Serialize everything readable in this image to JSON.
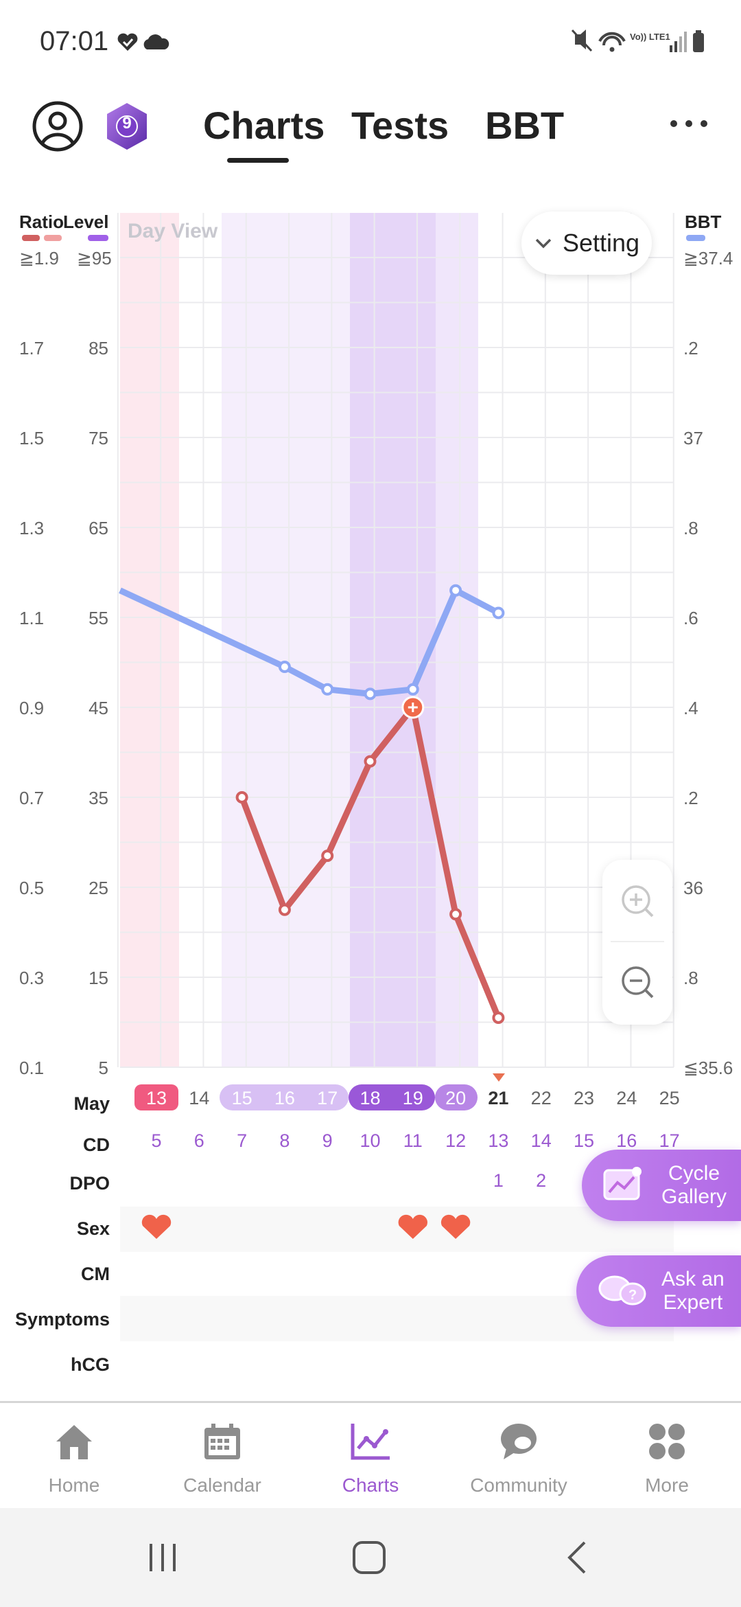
{
  "status_bar": {
    "time": "07:01",
    "network_label": "Vo)) LTE1"
  },
  "top_nav": {
    "badge_level": "9",
    "tabs": [
      {
        "label": "Charts",
        "active": true
      },
      {
        "label": "Tests",
        "active": false
      },
      {
        "label": "BBT",
        "active": false
      }
    ]
  },
  "chart": {
    "day_view_label": "Day View",
    "setting_label": "Setting",
    "axis_headers": {
      "ratio": "Ratio",
      "level": "Level",
      "bbt": "BBT"
    },
    "colors": {
      "ratio": "#d06060",
      "level": "#a060e8",
      "bbt": "#8ea8f4",
      "period": "#f05a80",
      "fertile": "#d8c0f4",
      "peak": "#9a58d8"
    }
  },
  "chart_data": {
    "type": "line",
    "ratio_ticks": [
      "≧1.9",
      "1.7",
      "1.5",
      "1.3",
      "1.1",
      "0.9",
      "0.7",
      "0.5",
      "0.3",
      "0.1"
    ],
    "level_ticks": [
      "≧95",
      "85",
      "75",
      "65",
      "55",
      "45",
      "35",
      "25",
      "15",
      "5"
    ],
    "bbt_ticks": [
      "≧37.4",
      ".2",
      "37",
      ".8",
      ".6",
      ".4",
      ".2",
      "36",
      ".8",
      "≦35.6"
    ],
    "level_ylim": [
      5,
      95
    ],
    "bbt_ylim": [
      35.6,
      37.4
    ],
    "dates": [
      "13",
      "14",
      "15",
      "16",
      "17",
      "18",
      "19",
      "20",
      "21",
      "22",
      "23",
      "24",
      "25"
    ],
    "month": "May",
    "today": "21",
    "series": [
      {
        "name": "Level",
        "color": "#d06060",
        "points": [
          [
            15,
            35
          ],
          [
            16,
            22.5
          ],
          [
            17,
            28.5
          ],
          [
            18,
            39
          ],
          [
            19,
            45
          ],
          [
            20,
            22
          ],
          [
            21,
            10.5
          ]
        ],
        "peak_date": 19
      },
      {
        "name": "BBT",
        "color": "#8ea8f4",
        "points": [
          [
            13,
            36.66
          ],
          [
            16,
            36.49
          ],
          [
            17,
            36.44
          ],
          [
            18,
            36.43
          ],
          [
            19,
            36.44
          ],
          [
            20,
            36.66
          ],
          [
            21,
            36.61
          ]
        ]
      }
    ]
  },
  "table": {
    "row_labels": {
      "month": "May",
      "cd": "CD",
      "dpo": "DPO",
      "sex": "Sex",
      "cm": "CM",
      "symptoms": "Symptoms",
      "hcg": "hCG"
    },
    "cd_values": [
      "5",
      "6",
      "7",
      "8",
      "9",
      "10",
      "11",
      "12",
      "13",
      "14",
      "15",
      "16",
      "17"
    ],
    "dpo_values": [
      "1",
      "2"
    ],
    "sex_dates": [
      "13",
      "19",
      "20"
    ]
  },
  "floating_buttons": [
    {
      "label_line1": "Cycle",
      "label_line2": "Gallery"
    },
    {
      "label_line1": "Ask an",
      "label_line2": "Expert"
    }
  ],
  "bottom_nav": [
    {
      "label": "Home",
      "icon": "home-icon",
      "active": false
    },
    {
      "label": "Calendar",
      "icon": "calendar-icon",
      "active": false
    },
    {
      "label": "Charts",
      "icon": "charts-icon",
      "active": true
    },
    {
      "label": "Community",
      "icon": "community-icon",
      "active": false
    },
    {
      "label": "More",
      "icon": "more-grid-icon",
      "active": false
    }
  ]
}
